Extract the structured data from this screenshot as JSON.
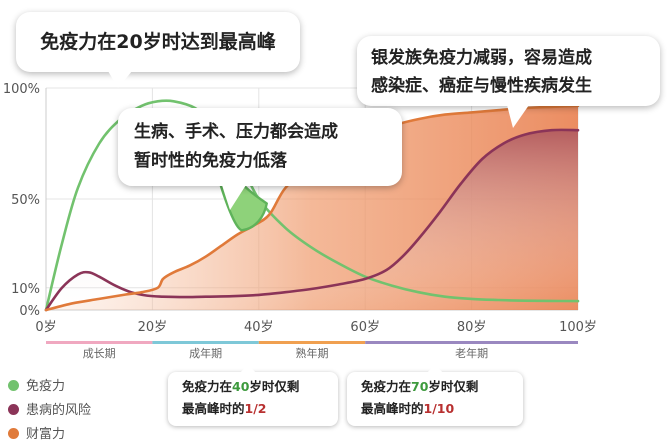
{
  "chart_data": {
    "type": "line",
    "xlabel": "",
    "ylabel": "",
    "x_ticks": [
      "0岁",
      "20岁",
      "40岁",
      "60岁",
      "80岁",
      "100岁"
    ],
    "y_ticks": [
      "100%",
      "50%",
      "10%",
      "0%"
    ],
    "xlim": [
      0,
      100
    ],
    "ylim": [
      0,
      100
    ],
    "y_tick_values": [
      100,
      50,
      10,
      0
    ],
    "stages": [
      {
        "label": "成长期",
        "from": 0,
        "to": 20,
        "color": "#f0a8c0"
      },
      {
        "label": "成年期",
        "from": 20,
        "to": 40,
        "color": "#7ec8d8"
      },
      {
        "label": "熟年期",
        "from": 40,
        "to": 60,
        "color": "#f0a050"
      },
      {
        "label": "老年期",
        "from": 60,
        "to": 100,
        "color": "#9a88c0"
      }
    ],
    "series": [
      {
        "name": "免疫力",
        "color": "#72c26e",
        "x": [
          0,
          3,
          6,
          10,
          14,
          18,
          21,
          24,
          28,
          31,
          34,
          37,
          40,
          45,
          50,
          55,
          60,
          65,
          70,
          75,
          80,
          85,
          90,
          95,
          100
        ],
        "y": [
          0,
          30,
          55,
          75,
          86,
          92,
          94,
          94,
          91,
          85,
          76,
          64,
          50,
          37,
          28,
          21,
          15,
          11,
          8,
          6,
          5,
          4.5,
          4.2,
          4.1,
          4
        ]
      },
      {
        "name": "患病的风险",
        "color": "#8b3458",
        "x": [
          0,
          3,
          6,
          8,
          10,
          13,
          16,
          19,
          22,
          26,
          30,
          35,
          40,
          45,
          50,
          55,
          60,
          64,
          67,
          70,
          74,
          78,
          82,
          86,
          90,
          95,
          100
        ],
        "y": [
          0,
          10,
          16,
          17,
          15,
          11,
          8,
          6.5,
          6,
          5.8,
          6,
          6.2,
          6.8,
          8,
          9.5,
          11.5,
          14,
          18,
          24,
          32,
          44,
          57,
          68,
          75,
          79,
          81,
          81
        ]
      },
      {
        "name": "财富力",
        "color": "#e07a3a",
        "x": [
          0,
          5,
          10,
          15,
          18,
          21,
          22,
          24,
          27,
          30,
          33,
          36,
          39,
          42,
          45,
          50,
          55,
          60,
          65,
          70,
          75,
          80,
          85,
          90,
          95,
          100
        ],
        "y": [
          0,
          3,
          5,
          7,
          8,
          10,
          14,
          17,
          20,
          24,
          29,
          34,
          38,
          43,
          55,
          66,
          73,
          79,
          83,
          86,
          88,
          89,
          90,
          91,
          91.5,
          92
        ]
      }
    ]
  },
  "callouts": {
    "peak": "免疫力在20岁时达到最高峰",
    "decline_line1": "银发族免疫力减弱，容易造成",
    "decline_line2": "感染症、癌症与慢性疾病发生",
    "dip_line1": "生病、手术、压力都会造成",
    "dip_line2": "暂时性的免疫力低落"
  },
  "notes": {
    "age40": {
      "pre": "免疫力在",
      "age": "40",
      "mid": "岁时仅剩",
      "line2_pre": "最高峰时的",
      "fraction": "1/2"
    },
    "age70": {
      "pre": "免疫力在",
      "age": "70",
      "mid": "岁时仅剩",
      "line2_pre": "最高峰时的",
      "fraction": "1/10"
    }
  },
  "legend": [
    {
      "label": "免疫力",
      "color": "#72c26e"
    },
    {
      "label": "患病的风险",
      "color": "#8b3458"
    },
    {
      "label": "财富力",
      "color": "#e07a3a"
    }
  ]
}
